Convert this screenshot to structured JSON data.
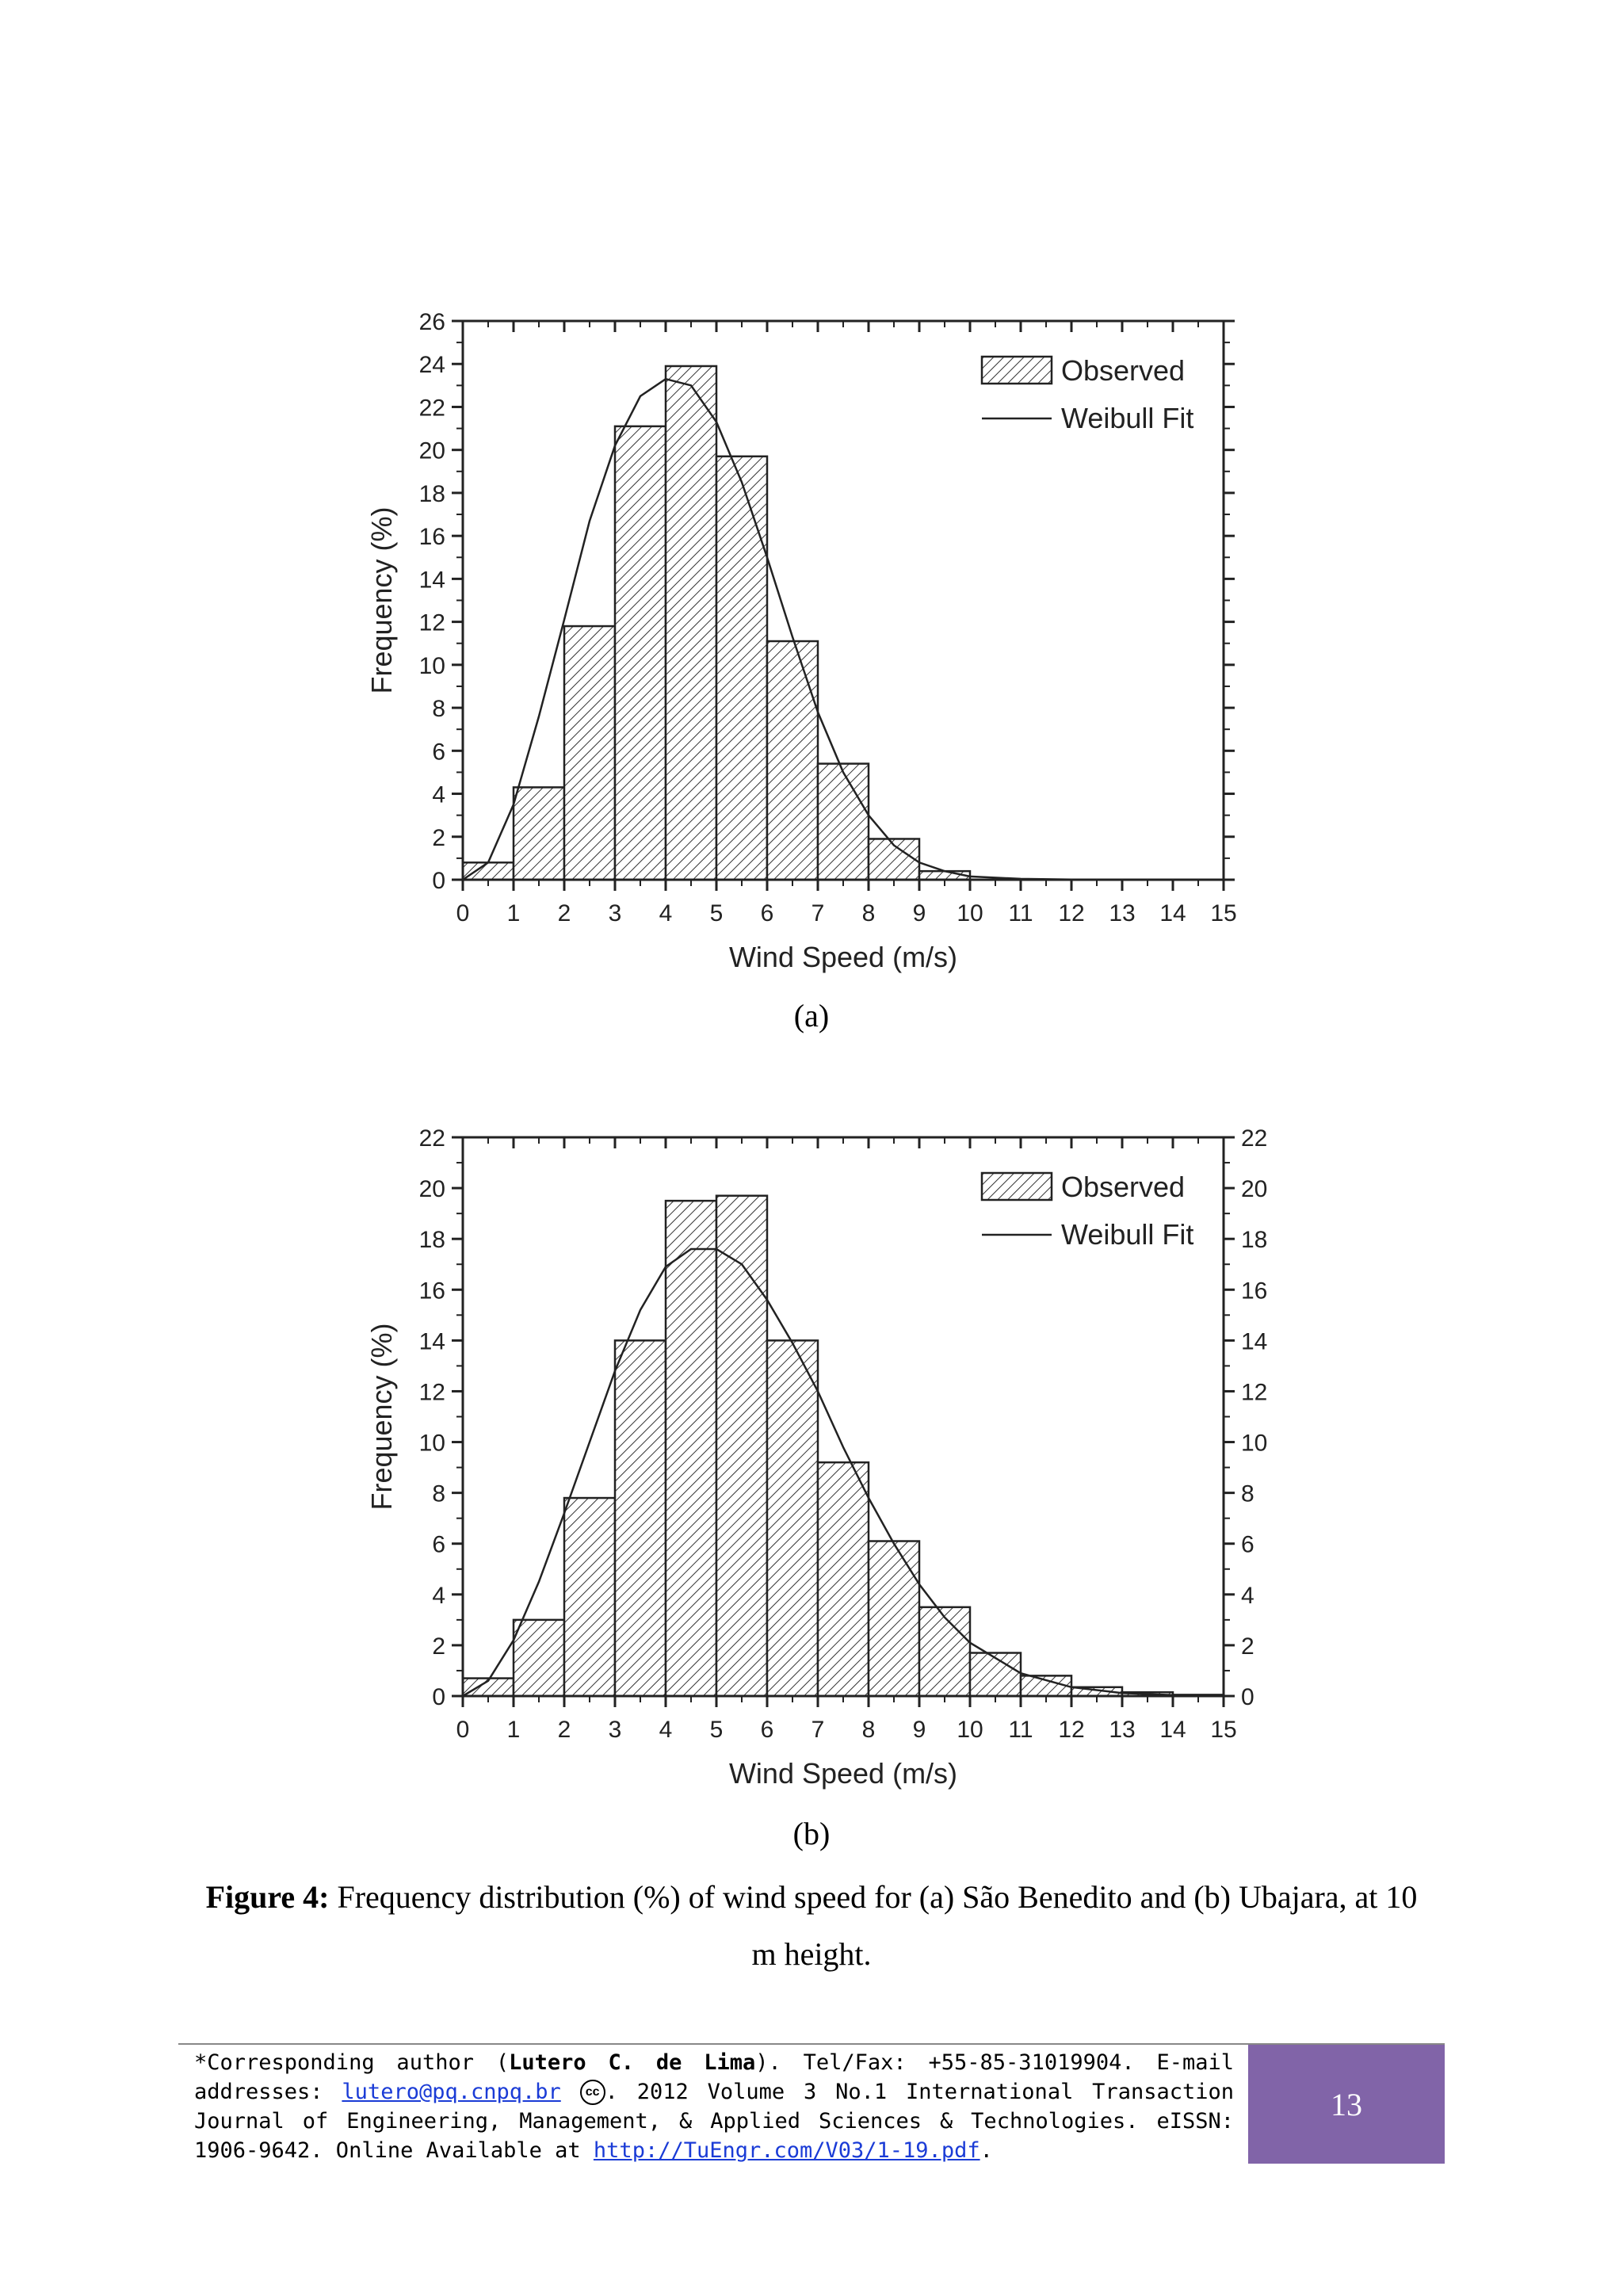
{
  "chart_data": [
    {
      "type": "bar",
      "panel": "(a)",
      "xlabel": "Wind Speed (m/s)",
      "ylabel": "Frequency (%)",
      "xlim": [
        0,
        15
      ],
      "ylim": [
        0,
        26
      ],
      "xticks": [
        0,
        1,
        2,
        3,
        4,
        5,
        6,
        7,
        8,
        9,
        10,
        11,
        12,
        13,
        14,
        15
      ],
      "yticks": [
        0,
        2,
        4,
        6,
        8,
        10,
        12,
        14,
        16,
        18,
        20,
        22,
        24,
        26
      ],
      "right_axis_labels": false,
      "bin_edges": [
        0,
        1,
        2,
        3,
        4,
        5,
        6,
        7,
        8,
        9,
        10
      ],
      "series": [
        {
          "name": "Observed",
          "values": [
            0.8,
            4.3,
            11.8,
            21.1,
            23.9,
            19.7,
            11.1,
            5.4,
            1.9,
            0.4
          ]
        },
        {
          "name": "Weibull Fit",
          "x": [
            0,
            0.5,
            1,
            1.5,
            2,
            2.5,
            3,
            3.5,
            4,
            4.5,
            5,
            5.5,
            6,
            6.5,
            7,
            7.5,
            8,
            8.5,
            9,
            9.5,
            10,
            11,
            12,
            13,
            14,
            15
          ],
          "values": [
            0,
            0.8,
            3.5,
            7.6,
            12.1,
            16.7,
            20.2,
            22.5,
            23.3,
            23.0,
            21.3,
            18.5,
            15.0,
            11.3,
            7.8,
            5.0,
            3.0,
            1.6,
            0.8,
            0.4,
            0.15,
            0.04,
            0.01,
            0,
            0,
            0
          ]
        }
      ],
      "legend_position": "top-right"
    },
    {
      "type": "bar",
      "panel": "(b)",
      "xlabel": "Wind Speed (m/s)",
      "ylabel": "Frequency (%)",
      "xlim": [
        0,
        15
      ],
      "ylim": [
        0,
        22
      ],
      "xticks": [
        0,
        1,
        2,
        3,
        4,
        5,
        6,
        7,
        8,
        9,
        10,
        11,
        12,
        13,
        14,
        15
      ],
      "yticks": [
        0,
        2,
        4,
        6,
        8,
        10,
        12,
        14,
        16,
        18,
        20,
        22
      ],
      "right_axis_labels": true,
      "bin_edges": [
        0,
        1,
        2,
        3,
        4,
        5,
        6,
        7,
        8,
        9,
        10,
        11,
        12,
        13,
        14,
        15
      ],
      "series": [
        {
          "name": "Observed",
          "values": [
            0.7,
            3.0,
            7.8,
            14.0,
            19.5,
            19.7,
            14.0,
            9.2,
            6.1,
            3.5,
            1.7,
            0.8,
            0.35,
            0.15,
            0.05
          ]
        },
        {
          "name": "Weibull Fit",
          "x": [
            0,
            0.5,
            1,
            1.5,
            2,
            2.5,
            3,
            3.5,
            4,
            4.5,
            5,
            5.5,
            6,
            6.5,
            7,
            7.5,
            8,
            8.5,
            9,
            9.5,
            10,
            11,
            12,
            13,
            14,
            15
          ],
          "values": [
            0,
            0.6,
            2.2,
            4.5,
            7.2,
            10.0,
            12.8,
            15.2,
            16.9,
            17.6,
            17.6,
            17.0,
            15.6,
            13.9,
            12.0,
            9.8,
            7.8,
            6.0,
            4.4,
            3.1,
            2.1,
            0.9,
            0.35,
            0.12,
            0.04,
            0.01
          ]
        }
      ],
      "legend_position": "top-right"
    }
  ],
  "figure": {
    "sub_a": "(a)",
    "sub_b": "(b)",
    "caption_label": "Figure 4:",
    "caption_text": " Frequency distribution (%) of wind speed for (a) São Benedito and (b) Ubajara, at 10 m height."
  },
  "footer": {
    "line1_a": "*Corresponding author (",
    "author": "Lutero C. de Lima",
    "line1_b": "). Tel/Fax: +55-85-31019904. E-mail addresses: ",
    "email": "lutero@pq.cnpq.br",
    "cc_symbol": "cc",
    "line2": ". 2012 Volume 3 No.1 International Transaction Journal of Engineering, Management, & Applied Sciences & Technologies. eISSN: 1906-9642. Online Available at ",
    "url": "http://TuEngr.com/V03/1-19.pdf",
    "end": ".",
    "page_number": "13"
  }
}
